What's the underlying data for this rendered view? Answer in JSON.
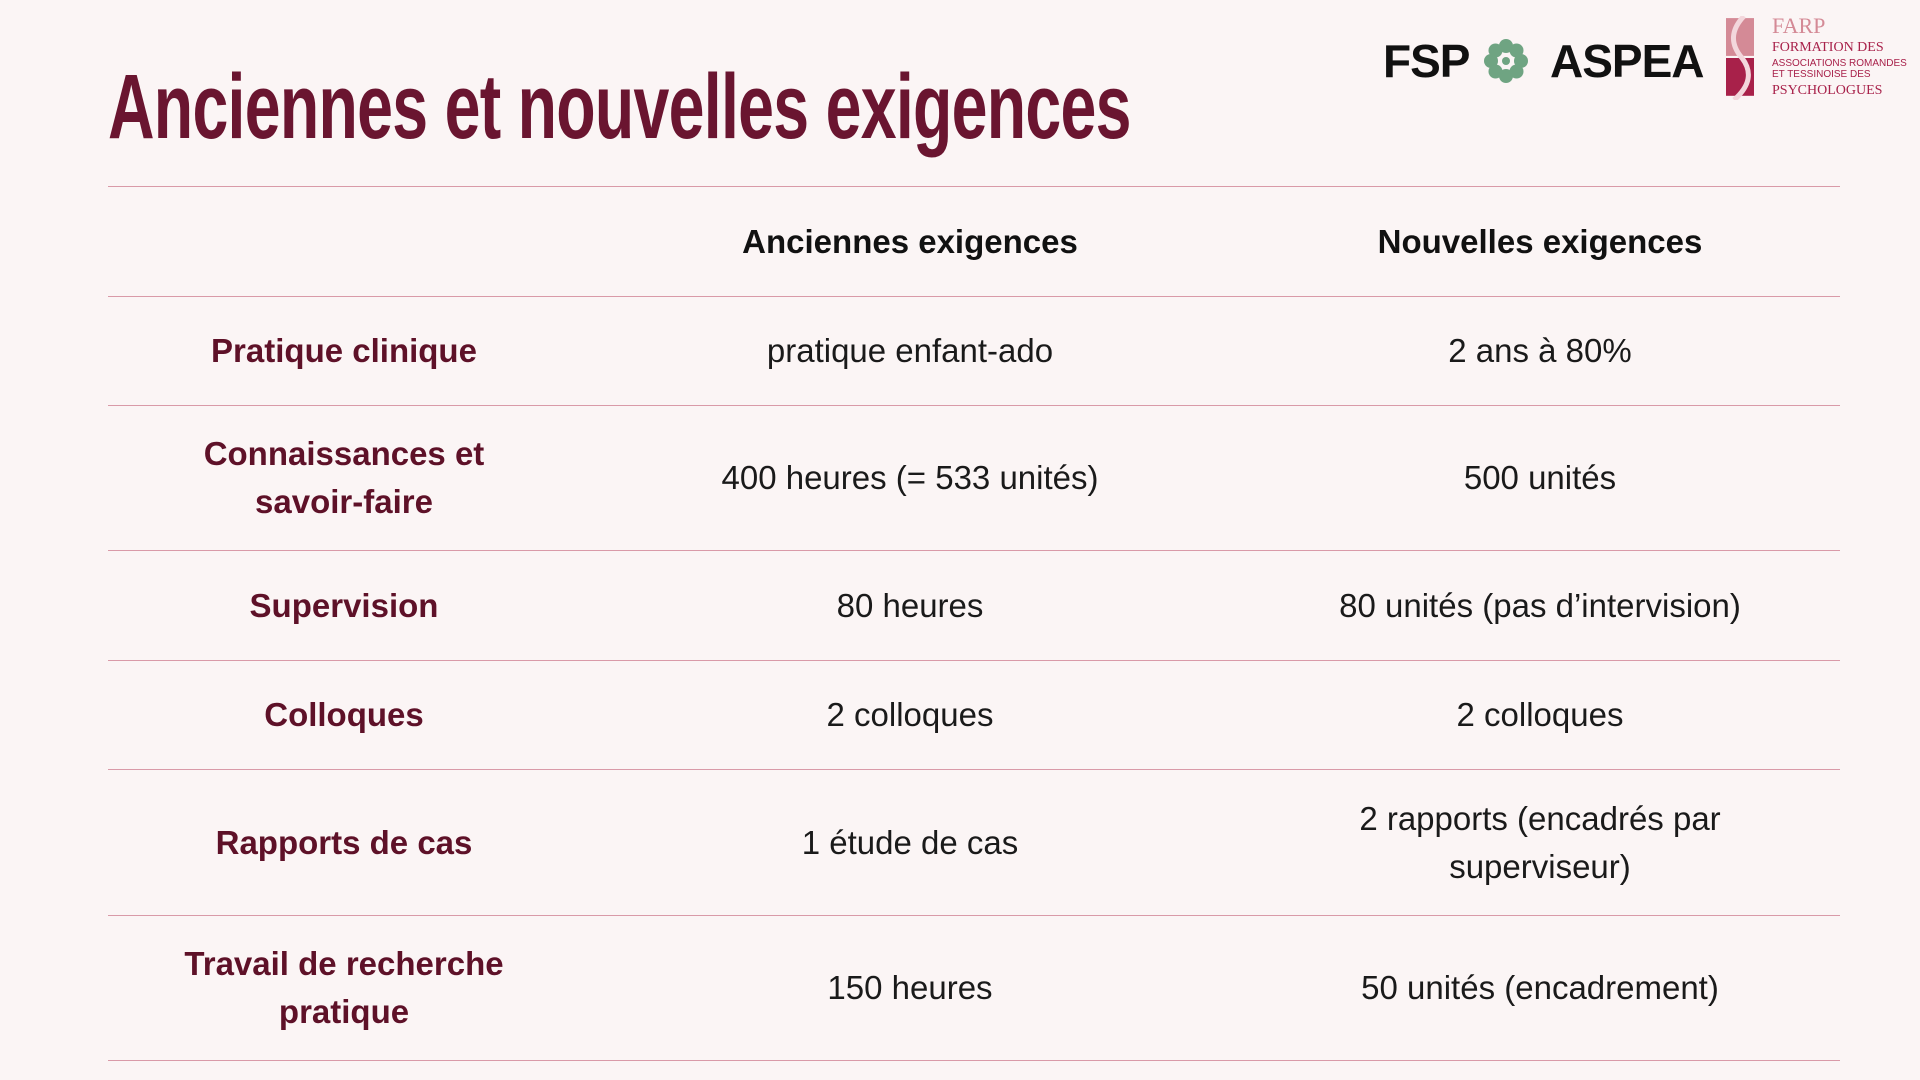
{
  "title": "Anciennes et nouvelles exigences",
  "logos": {
    "fsp": "FSP",
    "aspea": "ASPEA",
    "farp": "FARP",
    "farp_line1": "FORMATION DES",
    "farp_line2": "ASSOCIATIONS ROMANDES ET TESSINOISE DES",
    "farp_line3": "PSYCHOLOGUES",
    "colors": {
      "fsp_green": "#6fa482",
      "farp_pink": "#d48a96",
      "farp_red": "#a8214a"
    }
  },
  "colors": {
    "title": "#6a1530",
    "row_label": "#5e1128",
    "rule": "#d99aa8",
    "background": "#fbf5f5"
  },
  "table": {
    "headers": [
      "",
      "Anciennes exigences",
      "Nouvelles exigences"
    ],
    "rows": [
      {
        "label": "Pratique clinique",
        "old": "pratique enfant-ado",
        "new": "2 ans à 80%"
      },
      {
        "label": "Connaissances et savoir-faire",
        "old": "400 heures (= 533 unités)",
        "new": "500 unités"
      },
      {
        "label": "Supervision",
        "old": "80 heures",
        "new": "80 unités (pas d’intervision)"
      },
      {
        "label": "Colloques",
        "old": "2 colloques",
        "new": "2 colloques"
      },
      {
        "label": "Rapports de cas",
        "old": "1 étude de cas",
        "new": "2 rapports (encadrés par superviseur)"
      },
      {
        "label": "Travail de recherche pratique",
        "old": "150 heures",
        "new": "50 unités (encadrement)"
      }
    ]
  }
}
